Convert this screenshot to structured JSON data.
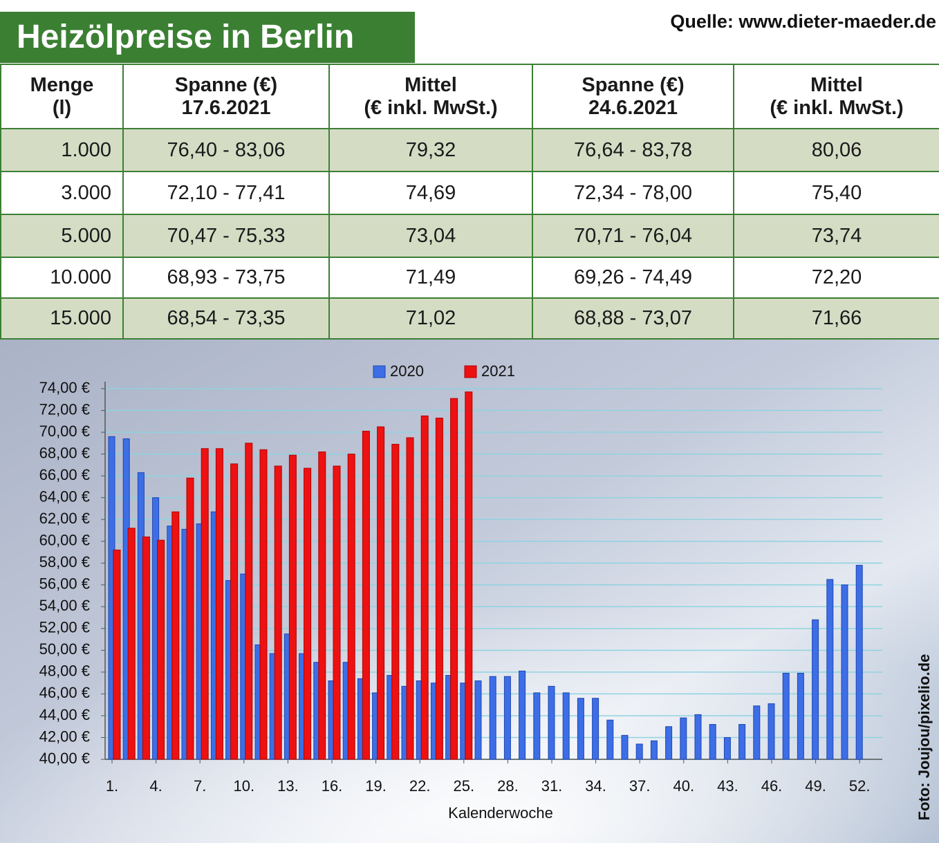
{
  "title": "Heizölpreise in Berlin",
  "source": "Quelle: www.dieter-maeder.de",
  "credit": "Foto: Joujou/pixelio.de",
  "table": {
    "header": [
      [
        "Menge",
        "(l)"
      ],
      [
        "Spanne (€)",
        "17.6.2021"
      ],
      [
        "Mittel",
        "(€ inkl. MwSt.)"
      ],
      [
        "Spanne (€)",
        "24.6.2021"
      ],
      [
        "Mittel",
        "(€ inkl. MwSt.)"
      ]
    ],
    "rows": [
      [
        "1.000",
        "76,40 - 83,06",
        "79,32",
        "76,64 - 83,78",
        "80,06"
      ],
      [
        "3.000",
        "72,10 - 77,41",
        "74,69",
        "72,34 - 78,00",
        "75,40"
      ],
      [
        "5.000",
        "70,47 - 75,33",
        "73,04",
        "70,71 - 76,04",
        "73,74"
      ],
      [
        "10.000",
        "68,93 - 73,75",
        "71,49",
        "69,26 - 74,49",
        "72,20"
      ],
      [
        "15.000",
        "68,54 - 73,35",
        "71,02",
        "68,88 - 73,07",
        "71,66"
      ]
    ]
  },
  "chart_data": {
    "type": "bar",
    "x_label": "Kalenderwoche",
    "categories": [
      "1.",
      null,
      null,
      "4.",
      null,
      null,
      "7.",
      null,
      null,
      "10.",
      null,
      null,
      "13.",
      null,
      null,
      "16.",
      null,
      null,
      "19.",
      null,
      null,
      "22.",
      null,
      null,
      "25.",
      null,
      null,
      "28.",
      null,
      null,
      "31.",
      null,
      null,
      "34.",
      null,
      null,
      "37.",
      null,
      null,
      "40.",
      null,
      null,
      "43.",
      null,
      null,
      "46.",
      null,
      null,
      "49.",
      null,
      null,
      "52."
    ],
    "series": [
      {
        "name": "2020",
        "color": "#3d6ee6",
        "values": [
          69.6,
          69.4,
          66.3,
          64.0,
          61.4,
          61.1,
          61.6,
          62.7,
          56.4,
          57.0,
          50.5,
          49.7,
          51.5,
          49.7,
          48.9,
          47.2,
          48.9,
          47.4,
          46.1,
          47.7,
          46.7,
          47.2,
          47.0,
          47.7,
          47.0,
          47.2,
          47.6,
          47.6,
          48.1,
          46.1,
          46.7,
          46.1,
          45.6,
          45.6,
          43.6,
          42.2,
          41.4,
          41.7,
          43.0,
          43.8,
          44.1,
          43.2,
          42.0,
          43.2,
          44.9,
          45.1,
          47.9,
          47.9,
          52.8,
          56.5,
          56.0,
          57.8
        ]
      },
      {
        "name": "2021",
        "color": "#ee1111",
        "values": [
          59.2,
          61.2,
          60.4,
          60.1,
          62.7,
          65.8,
          68.5,
          68.5,
          67.1,
          69.0,
          68.4,
          66.9,
          67.9,
          66.7,
          68.2,
          66.9,
          68.0,
          70.1,
          70.5,
          68.9,
          69.5,
          71.5,
          71.3,
          73.1,
          73.7,
          null,
          null,
          null,
          null,
          null,
          null,
          null,
          null,
          null,
          null,
          null,
          null,
          null,
          null,
          null,
          null,
          null,
          null,
          null,
          null,
          null,
          null,
          null,
          null,
          null,
          null,
          null
        ]
      }
    ],
    "ylim": [
      40,
      74
    ],
    "yticks": [
      {
        "value": 40,
        "label": "40,00 €"
      },
      {
        "value": 42,
        "label": "42,00 €"
      },
      {
        "value": 44,
        "label": "44,00 €"
      },
      {
        "value": 46,
        "label": "46,00 €"
      },
      {
        "value": 48,
        "label": "48,00 €"
      },
      {
        "value": 50,
        "label": "50,00 €"
      },
      {
        "value": 52,
        "label": "52,00 €"
      },
      {
        "value": 54,
        "label": "54,00 €"
      },
      {
        "value": 56,
        "label": "56,00 €"
      },
      {
        "value": 58,
        "label": "58,00 €"
      },
      {
        "value": 60,
        "label": "60,00 €"
      },
      {
        "value": 62,
        "label": "62,00 €"
      },
      {
        "value": 64,
        "label": "64,00 €"
      },
      {
        "value": 66,
        "label": "66,00 €"
      },
      {
        "value": 68,
        "label": "68,00 €"
      },
      {
        "value": 70,
        "label": "70,00 €"
      },
      {
        "value": 72,
        "label": "72,00 €"
      },
      {
        "value": 74,
        "label": "74,00 €"
      }
    ],
    "grid": true,
    "legend": "top"
  }
}
